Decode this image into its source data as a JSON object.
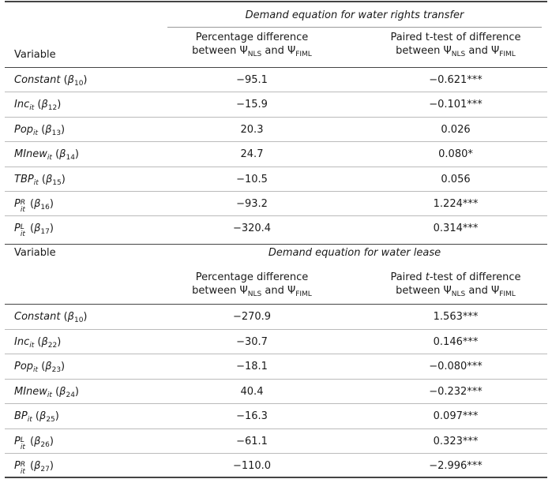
{
  "panel1": {
    "title": "Demand equation for water rights transfer",
    "variable_label": "Variable",
    "col1_line1": "Percentage difference",
    "col1_line2_pre": "between Ψ",
    "col1_line2_sub1": "NLS",
    "col1_line2_mid": " and Ψ",
    "col1_line2_sub2": "FIML",
    "col2_line1": "Paired t-test of difference",
    "col2_line2_pre": "between Ψ",
    "col2_line2_sub1": "NLS",
    "col2_line2_mid": " and Ψ",
    "col2_line2_sub2": "FIML",
    "rows": [
      {
        "name": "Constant",
        "sub": "",
        "sup": "",
        "beta": "10",
        "pct": "−95.1",
        "ttest": "−0.621***"
      },
      {
        "name": "Inc",
        "sub": "it",
        "sup": "",
        "beta": "12",
        "pct": "−15.9",
        "ttest": "−0.101***"
      },
      {
        "name": "Pop",
        "sub": "it",
        "sup": "",
        "beta": "13",
        "pct": "20.3",
        "ttest": "0.026"
      },
      {
        "name": "MInew",
        "sub": "it",
        "sup": "",
        "beta": "14",
        "pct": "24.7",
        "ttest": "0.080*"
      },
      {
        "name": "TBP",
        "sub": "it",
        "sup": "",
        "beta": "15",
        "pct": "−10.5",
        "ttest": "0.056"
      },
      {
        "name": "P",
        "sub": "it",
        "sup": "R",
        "beta": "16",
        "pct": "−93.2",
        "ttest": "1.224***"
      },
      {
        "name": "P",
        "sub": "it",
        "sup": "L",
        "beta": "17",
        "pct": "−320.4",
        "ttest": "0.314***"
      }
    ]
  },
  "panel2": {
    "variable_label": "Variable",
    "title": "Demand equation for water lease",
    "col1_line1": "Percentage difference",
    "col1_line2_pre": "between Ψ",
    "col1_line2_sub1": "NLS",
    "col1_line2_mid": " and Ψ",
    "col1_line2_sub2": "FIML",
    "col2_line1_pre": "Paired ",
    "col2_line1_t": "t",
    "col2_line1_post": "-test of difference",
    "col2_line2_pre": "between Ψ",
    "col2_line2_sub1": "NLS",
    "col2_line2_mid": " and Ψ",
    "col2_line2_sub2": "FIML",
    "rows": [
      {
        "name": "Constant",
        "sub": "",
        "sup": "",
        "beta": "10",
        "pct": "−270.9",
        "ttest": "1.563***"
      },
      {
        "name": "Inc",
        "sub": "it",
        "sup": "",
        "beta": "22",
        "pct": "−30.7",
        "ttest": "0.146***"
      },
      {
        "name": "Pop",
        "sub": "it",
        "sup": "",
        "beta": "23",
        "pct": "−18.1",
        "ttest": "−0.080***"
      },
      {
        "name": "MInew",
        "sub": "it",
        "sup": "",
        "beta": "24",
        "pct": "40.4",
        "ttest": "−0.232***"
      },
      {
        "name": "BP",
        "sub": "it",
        "sup": "",
        "beta": "25",
        "pct": "−16.3",
        "ttest": "0.097***"
      },
      {
        "name": "P",
        "sub": "it",
        "sup": "L",
        "beta": "26",
        "pct": "−61.1",
        "ttest": "0.323***"
      },
      {
        "name": "P",
        "sub": "it",
        "sup": "R",
        "beta": "27",
        "pct": "−110.0",
        "ttest": "−2.996***"
      }
    ]
  }
}
